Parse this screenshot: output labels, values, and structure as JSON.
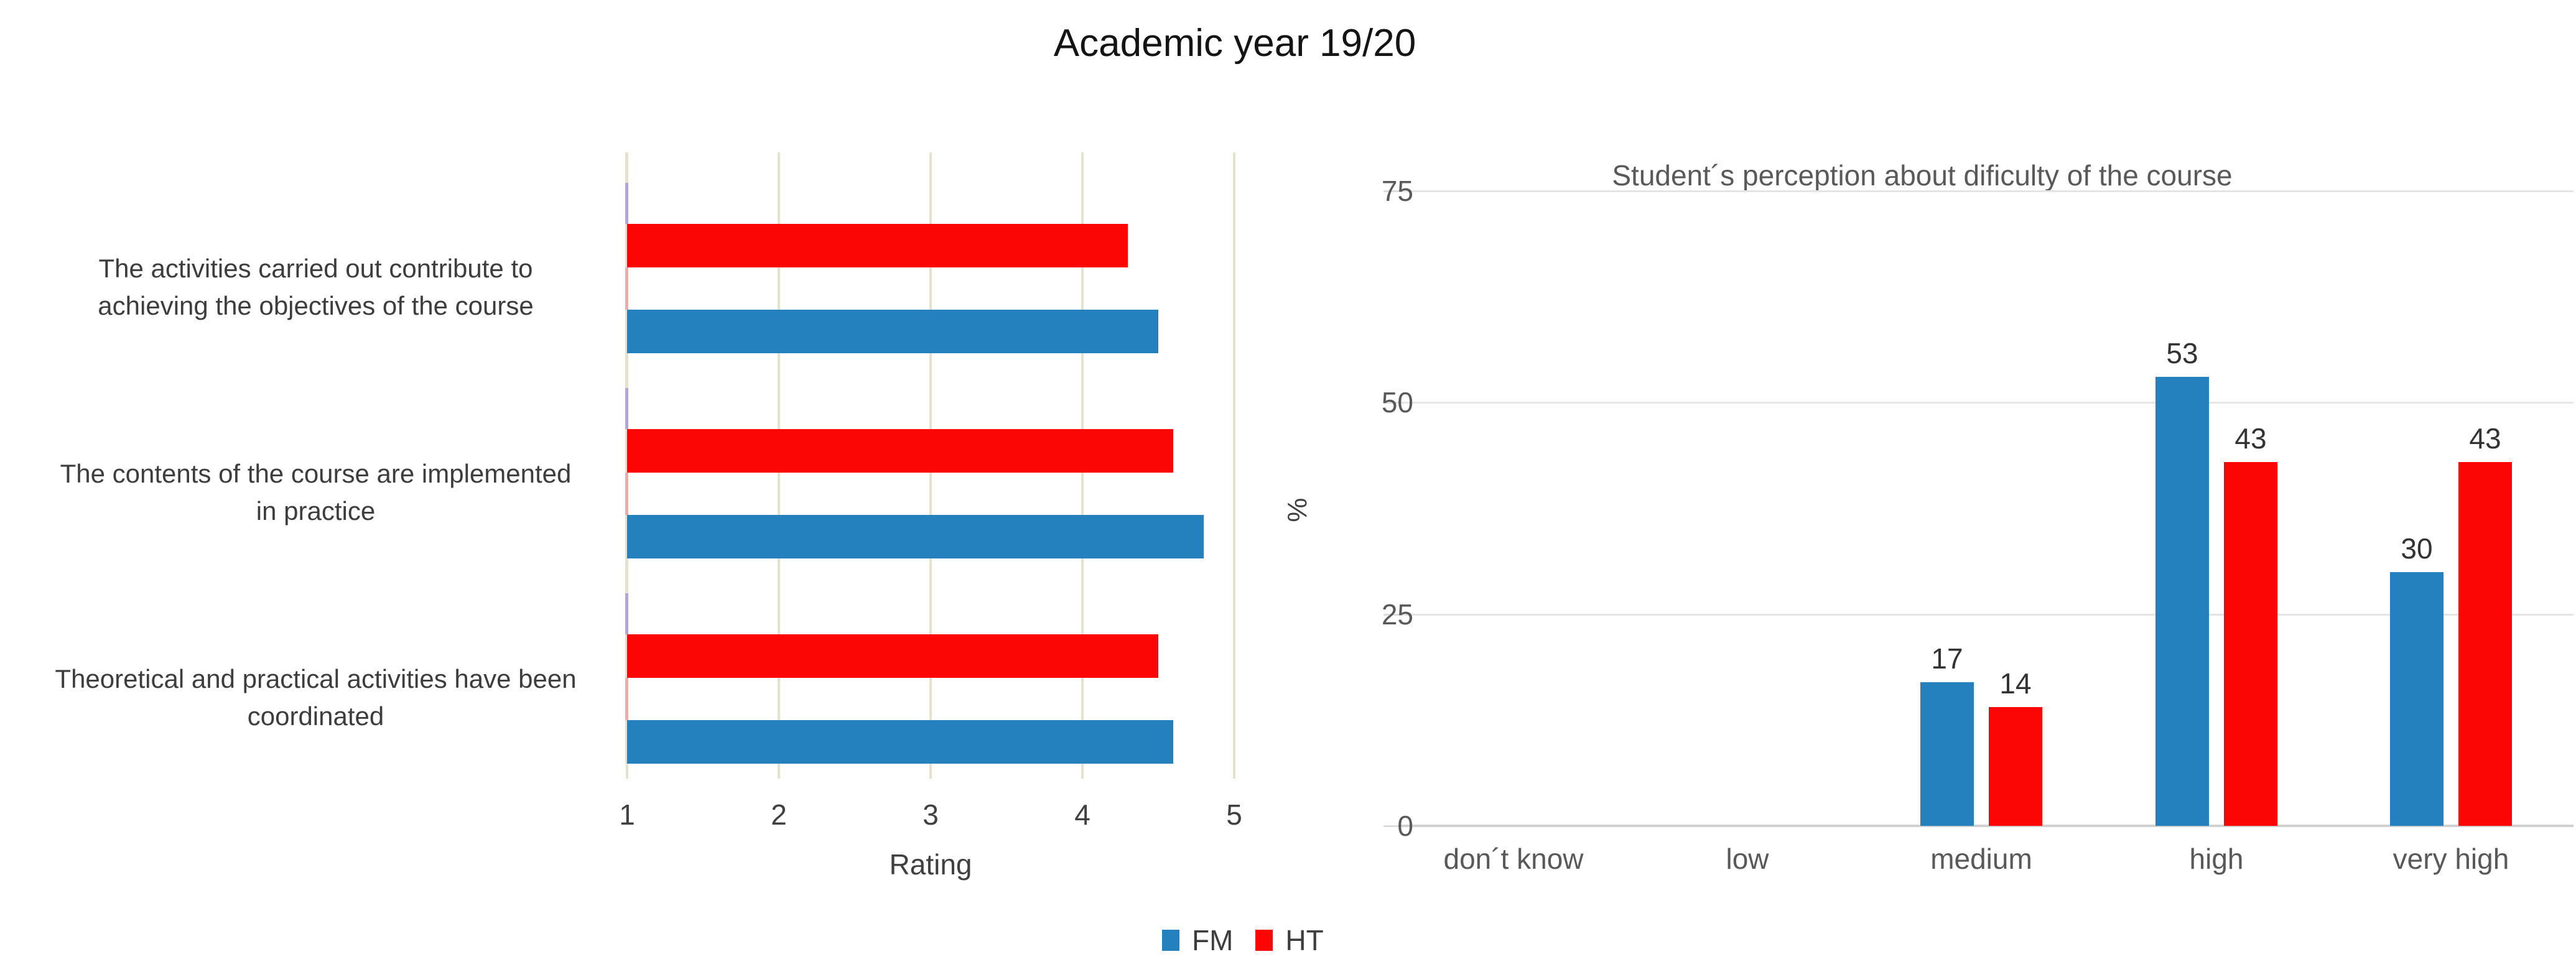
{
  "title": "Academic year 19/20",
  "legend": {
    "items": [
      {
        "label": "FM",
        "color": "#2580BE"
      },
      {
        "label": "HT",
        "color": "#FB0505"
      }
    ]
  },
  "chart_data": [
    {
      "id": "course-ratings",
      "type": "bar",
      "orientation": "horizontal",
      "title": "",
      "xlabel": "Rating",
      "xlim": [
        1,
        5
      ],
      "x_ticks": [
        1,
        2,
        3,
        4,
        5
      ],
      "grid": "vertical",
      "gridline_color": "#E7E2CF",
      "axis_accent_colors": {
        "lavender": "#B3A6D5",
        "pink": "#F2A9AC",
        "tan": "#E7E2CF"
      },
      "categories": [
        {
          "label": "The activities carried out contribute to achieving the objectives of the course",
          "lines": [
            "The activities carried out contribute to",
            "achieving the objectives of the course"
          ]
        },
        {
          "label": "The contents of the course are implemented in practice",
          "lines": [
            "The contents of the course are implemented",
            "in practice"
          ]
        },
        {
          "label": "Theoretical and practical activities have been coordinated",
          "lines": [
            "Theoretical and practical activities have been",
            "coordinated"
          ]
        }
      ],
      "series": [
        {
          "name": "FM",
          "color": "#2580BE",
          "values": [
            4.5,
            4.8,
            4.6
          ]
        },
        {
          "name": "HT",
          "color": "#FB0505",
          "values": [
            4.3,
            4.6,
            4.5
          ]
        }
      ]
    },
    {
      "id": "difficulty-perception",
      "type": "bar",
      "orientation": "vertical",
      "title": "Student´s perception about dificulty of the course",
      "ylabel": "%",
      "ylim": [
        0,
        75
      ],
      "y_ticks": [
        0,
        25,
        50,
        75
      ],
      "grid": "horizontal",
      "gridline_color": "#E5E5E5",
      "axis_line_color": "#D2D2D2",
      "data_labels": true,
      "categories": [
        "don´t know",
        "low",
        "medium",
        "high",
        "very high"
      ],
      "series": [
        {
          "name": "FM",
          "color": "#2580BE",
          "values": [
            0,
            0,
            17,
            53,
            30
          ]
        },
        {
          "name": "HT",
          "color": "#FB0505",
          "values": [
            0,
            0,
            14,
            43,
            43
          ]
        }
      ]
    }
  ]
}
